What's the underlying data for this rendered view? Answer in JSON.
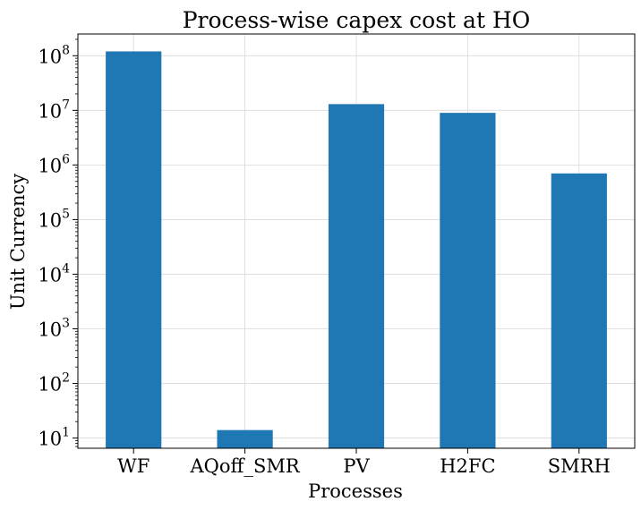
{
  "chart_data": {
    "type": "bar",
    "title": "Process-wise capex cost at HO",
    "xlabel": "Processes",
    "ylabel": "Unit Currency",
    "y_scale": "log",
    "ylim": [
      6.5,
      250000000
    ],
    "grid": true,
    "categories": [
      "WF",
      "AQoff_SMR",
      "PV",
      "H2FC",
      "SMRH"
    ],
    "values": [
      120000000,
      14,
      13000000,
      9000000,
      700000
    ],
    "bar_color": "#1f77b4",
    "y_ticks": [
      {
        "value": 10,
        "base": "10",
        "exp": "1"
      },
      {
        "value": 100,
        "base": "10",
        "exp": "2"
      },
      {
        "value": 1000,
        "base": "10",
        "exp": "3"
      },
      {
        "value": 10000,
        "base": "10",
        "exp": "4"
      },
      {
        "value": 100000,
        "base": "10",
        "exp": "5"
      },
      {
        "value": 1000000,
        "base": "10",
        "exp": "6"
      },
      {
        "value": 10000000,
        "base": "10",
        "exp": "7"
      },
      {
        "value": 100000000,
        "base": "10",
        "exp": "8"
      }
    ]
  }
}
